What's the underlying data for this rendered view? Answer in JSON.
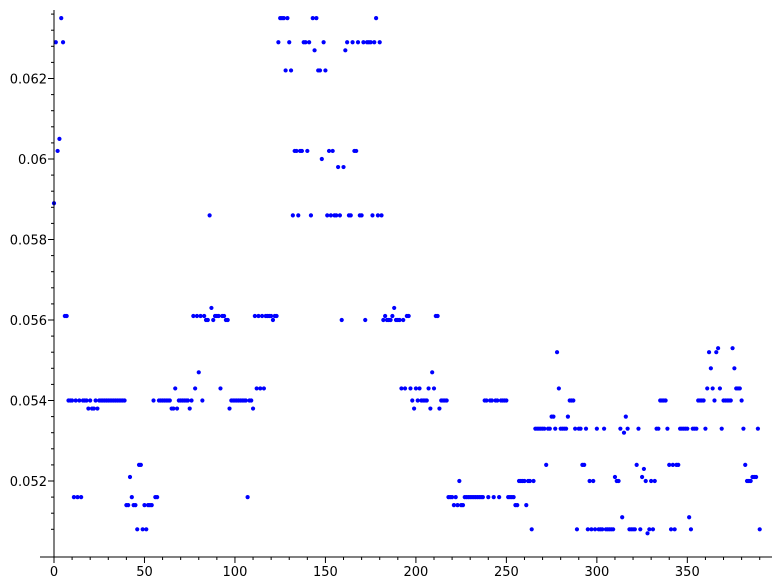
{
  "chart_data": {
    "type": "scatter",
    "title": "",
    "xlabel": "",
    "ylabel": "",
    "xlim": [
      0,
      396
    ],
    "ylim": [
      0.05035,
      0.06365
    ],
    "x_ticks": [
      0,
      50,
      100,
      150,
      200,
      250,
      300,
      350
    ],
    "y_ticks": [
      0.052,
      0.054,
      0.056,
      0.058,
      0.06,
      0.062
    ],
    "x_tick_labels": [
      "0",
      "50",
      "100",
      "150",
      "200",
      "250",
      "300",
      "350"
    ],
    "y_tick_labels": [
      "0.052",
      "0.054",
      "0.056",
      "0.058",
      "0.06",
      "0.062"
    ],
    "grid": false,
    "marker_color": "#0000ff",
    "points": [
      [
        0,
        0.0589
      ],
      [
        1,
        0.0629
      ],
      [
        2,
        0.0602
      ],
      [
        3,
        0.0605
      ],
      [
        4,
        0.0635
      ],
      [
        5,
        0.0629
      ],
      [
        6,
        0.0561
      ],
      [
        7,
        0.0561
      ],
      [
        8,
        0.054
      ],
      [
        9,
        0.054
      ],
      [
        10,
        0.054
      ],
      [
        11,
        0.0516
      ],
      [
        12,
        0.054
      ],
      [
        13,
        0.0516
      ],
      [
        14,
        0.054
      ],
      [
        15,
        0.0516
      ],
      [
        16,
        0.054
      ],
      [
        17,
        0.054
      ],
      [
        18,
        0.054
      ],
      [
        19,
        0.0538
      ],
      [
        20,
        0.054
      ],
      [
        21,
        0.0538
      ],
      [
        22,
        0.0538
      ],
      [
        23,
        0.054
      ],
      [
        24,
        0.0538
      ],
      [
        25,
        0.054
      ],
      [
        26,
        0.054
      ],
      [
        27,
        0.054
      ],
      [
        28,
        0.054
      ],
      [
        29,
        0.054
      ],
      [
        30,
        0.054
      ],
      [
        31,
        0.054
      ],
      [
        32,
        0.054
      ],
      [
        33,
        0.054
      ],
      [
        34,
        0.054
      ],
      [
        35,
        0.054
      ],
      [
        36,
        0.054
      ],
      [
        37,
        0.054
      ],
      [
        38,
        0.054
      ],
      [
        39,
        0.054
      ],
      [
        40,
        0.0514
      ],
      [
        41,
        0.0514
      ],
      [
        42,
        0.0521
      ],
      [
        43,
        0.0516
      ],
      [
        44,
        0.0514
      ],
      [
        45,
        0.0514
      ],
      [
        46,
        0.0508
      ],
      [
        47,
        0.0524
      ],
      [
        48,
        0.0524
      ],
      [
        49,
        0.0508
      ],
      [
        50,
        0.0514
      ],
      [
        51,
        0.0508
      ],
      [
        52,
        0.0514
      ],
      [
        53,
        0.0514
      ],
      [
        54,
        0.0514
      ],
      [
        55,
        0.054
      ],
      [
        56,
        0.0516
      ],
      [
        57,
        0.0516
      ],
      [
        58,
        0.054
      ],
      [
        59,
        0.054
      ],
      [
        60,
        0.054
      ],
      [
        61,
        0.054
      ],
      [
        62,
        0.054
      ],
      [
        63,
        0.054
      ],
      [
        64,
        0.054
      ],
      [
        65,
        0.0538
      ],
      [
        66,
        0.0538
      ],
      [
        67,
        0.0543
      ],
      [
        68,
        0.0538
      ],
      [
        69,
        0.054
      ],
      [
        70,
        0.054
      ],
      [
        71,
        0.054
      ],
      [
        72,
        0.054
      ],
      [
        73,
        0.054
      ],
      [
        74,
        0.054
      ],
      [
        75,
        0.0538
      ],
      [
        76,
        0.054
      ],
      [
        77,
        0.0561
      ],
      [
        78,
        0.0543
      ],
      [
        79,
        0.0561
      ],
      [
        80,
        0.0547
      ],
      [
        81,
        0.0561
      ],
      [
        82,
        0.054
      ],
      [
        83,
        0.0561
      ],
      [
        84,
        0.056
      ],
      [
        85,
        0.056
      ],
      [
        86,
        0.0586
      ],
      [
        87,
        0.0563
      ],
      [
        88,
        0.056
      ],
      [
        89,
        0.0561
      ],
      [
        90,
        0.0561
      ],
      [
        91,
        0.0561
      ],
      [
        92,
        0.0543
      ],
      [
        93,
        0.0561
      ],
      [
        94,
        0.0561
      ],
      [
        95,
        0.056
      ],
      [
        96,
        0.056
      ],
      [
        97,
        0.0538
      ],
      [
        98,
        0.054
      ],
      [
        99,
        0.054
      ],
      [
        100,
        0.054
      ],
      [
        101,
        0.054
      ],
      [
        102,
        0.054
      ],
      [
        103,
        0.054
      ],
      [
        104,
        0.054
      ],
      [
        105,
        0.054
      ],
      [
        106,
        0.054
      ],
      [
        107,
        0.0516
      ],
      [
        108,
        0.054
      ],
      [
        109,
        0.054
      ],
      [
        110,
        0.0538
      ],
      [
        111,
        0.0561
      ],
      [
        112,
        0.0543
      ],
      [
        113,
        0.0561
      ],
      [
        114,
        0.0543
      ],
      [
        115,
        0.0561
      ],
      [
        116,
        0.0543
      ],
      [
        117,
        0.0561
      ],
      [
        118,
        0.0561
      ],
      [
        119,
        0.0561
      ],
      [
        120,
        0.0561
      ],
      [
        121,
        0.056
      ],
      [
        122,
        0.0561
      ],
      [
        123,
        0.0561
      ],
      [
        124,
        0.0629
      ],
      [
        125,
        0.0635
      ],
      [
        126,
        0.0635
      ],
      [
        127,
        0.0635
      ],
      [
        128,
        0.0622
      ],
      [
        129,
        0.0635
      ],
      [
        130,
        0.0629
      ],
      [
        131,
        0.0622
      ],
      [
        132,
        0.0586
      ],
      [
        133,
        0.0602
      ],
      [
        134,
        0.0602
      ],
      [
        135,
        0.0586
      ],
      [
        136,
        0.0602
      ],
      [
        137,
        0.0602
      ],
      [
        138,
        0.0629
      ],
      [
        139,
        0.0629
      ],
      [
        140,
        0.0602
      ],
      [
        141,
        0.0629
      ],
      [
        142,
        0.0586
      ],
      [
        143,
        0.0635
      ],
      [
        144,
        0.0627
      ],
      [
        145,
        0.0635
      ],
      [
        146,
        0.0622
      ],
      [
        147,
        0.0622
      ],
      [
        148,
        0.06
      ],
      [
        149,
        0.0629
      ],
      [
        150,
        0.0622
      ],
      [
        151,
        0.0586
      ],
      [
        152,
        0.0602
      ],
      [
        153,
        0.0586
      ],
      [
        154,
        0.0602
      ],
      [
        155,
        0.0586
      ],
      [
        156,
        0.0586
      ],
      [
        157,
        0.0598
      ],
      [
        158,
        0.0586
      ],
      [
        159,
        0.056
      ],
      [
        160,
        0.0598
      ],
      [
        161,
        0.0627
      ],
      [
        162,
        0.0629
      ],
      [
        163,
        0.0586
      ],
      [
        164,
        0.0586
      ],
      [
        165,
        0.0629
      ],
      [
        166,
        0.0602
      ],
      [
        167,
        0.0602
      ],
      [
        168,
        0.0629
      ],
      [
        169,
        0.0586
      ],
      [
        170,
        0.0586
      ],
      [
        171,
        0.0629
      ],
      [
        172,
        0.056
      ],
      [
        173,
        0.0629
      ],
      [
        174,
        0.0629
      ],
      [
        175,
        0.0629
      ],
      [
        176,
        0.0586
      ],
      [
        177,
        0.0629
      ],
      [
        178,
        0.0635
      ],
      [
        179,
        0.0586
      ],
      [
        180,
        0.0629
      ],
      [
        181,
        0.0586
      ],
      [
        182,
        0.056
      ],
      [
        183,
        0.0561
      ],
      [
        184,
        0.056
      ],
      [
        185,
        0.056
      ],
      [
        186,
        0.056
      ],
      [
        187,
        0.0561
      ],
      [
        188,
        0.0563
      ],
      [
        189,
        0.056
      ],
      [
        190,
        0.056
      ],
      [
        191,
        0.056
      ],
      [
        192,
        0.0543
      ],
      [
        193,
        0.056
      ],
      [
        194,
        0.0543
      ],
      [
        195,
        0.0561
      ],
      [
        196,
        0.0561
      ],
      [
        197,
        0.0543
      ],
      [
        198,
        0.054
      ],
      [
        199,
        0.0538
      ],
      [
        200,
        0.0543
      ],
      [
        201,
        0.054
      ],
      [
        202,
        0.0543
      ],
      [
        203,
        0.054
      ],
      [
        204,
        0.054
      ],
      [
        205,
        0.054
      ],
      [
        206,
        0.054
      ],
      [
        207,
        0.0543
      ],
      [
        208,
        0.0538
      ],
      [
        209,
        0.0547
      ],
      [
        210,
        0.0543
      ],
      [
        211,
        0.0561
      ],
      [
        212,
        0.0561
      ],
      [
        213,
        0.0538
      ],
      [
        214,
        0.054
      ],
      [
        215,
        0.054
      ],
      [
        216,
        0.054
      ],
      [
        217,
        0.054
      ],
      [
        218,
        0.0516
      ],
      [
        219,
        0.0516
      ],
      [
        220,
        0.0516
      ],
      [
        221,
        0.0514
      ],
      [
        222,
        0.0516
      ],
      [
        223,
        0.0514
      ],
      [
        224,
        0.052
      ],
      [
        225,
        0.0514
      ],
      [
        226,
        0.0514
      ],
      [
        227,
        0.0516
      ],
      [
        228,
        0.0516
      ],
      [
        229,
        0.0516
      ],
      [
        230,
        0.0516
      ],
      [
        231,
        0.0516
      ],
      [
        232,
        0.0516
      ],
      [
        233,
        0.0516
      ],
      [
        234,
        0.0516
      ],
      [
        235,
        0.0516
      ],
      [
        236,
        0.0516
      ],
      [
        237,
        0.0516
      ],
      [
        238,
        0.054
      ],
      [
        239,
        0.054
      ],
      [
        240,
        0.0516
      ],
      [
        241,
        0.054
      ],
      [
        242,
        0.054
      ],
      [
        243,
        0.0516
      ],
      [
        244,
        0.054
      ],
      [
        245,
        0.054
      ],
      [
        246,
        0.0516
      ],
      [
        247,
        0.054
      ],
      [
        248,
        0.054
      ],
      [
        249,
        0.054
      ],
      [
        250,
        0.054
      ],
      [
        251,
        0.0516
      ],
      [
        252,
        0.0516
      ],
      [
        253,
        0.0516
      ],
      [
        254,
        0.0516
      ],
      [
        255,
        0.0514
      ],
      [
        256,
        0.0514
      ],
      [
        257,
        0.052
      ],
      [
        258,
        0.052
      ],
      [
        259,
        0.052
      ],
      [
        260,
        0.052
      ],
      [
        261,
        0.0514
      ],
      [
        262,
        0.052
      ],
      [
        263,
        0.052
      ],
      [
        264,
        0.0508
      ],
      [
        265,
        0.052
      ],
      [
        266,
        0.0533
      ],
      [
        267,
        0.0533
      ],
      [
        268,
        0.0533
      ],
      [
        269,
        0.0533
      ],
      [
        270,
        0.0533
      ],
      [
        271,
        0.0533
      ],
      [
        272,
        0.0524
      ],
      [
        273,
        0.0533
      ],
      [
        274,
        0.0533
      ],
      [
        275,
        0.0536
      ],
      [
        276,
        0.0536
      ],
      [
        277,
        0.0533
      ],
      [
        278,
        0.0552
      ],
      [
        279,
        0.0543
      ],
      [
        280,
        0.0533
      ],
      [
        281,
        0.0533
      ],
      [
        282,
        0.0533
      ],
      [
        283,
        0.0533
      ],
      [
        284,
        0.0536
      ],
      [
        285,
        0.054
      ],
      [
        286,
        0.054
      ],
      [
        287,
        0.054
      ],
      [
        288,
        0.0533
      ],
      [
        289,
        0.0508
      ],
      [
        290,
        0.0533
      ],
      [
        291,
        0.0533
      ],
      [
        292,
        0.0524
      ],
      [
        293,
        0.0524
      ],
      [
        294,
        0.0533
      ],
      [
        295,
        0.0508
      ],
      [
        296,
        0.052
      ],
      [
        297,
        0.0508
      ],
      [
        298,
        0.052
      ],
      [
        299,
        0.0508
      ],
      [
        300,
        0.0533
      ],
      [
        301,
        0.0508
      ],
      [
        302,
        0.0508
      ],
      [
        303,
        0.0508
      ],
      [
        304,
        0.0533
      ],
      [
        305,
        0.0508
      ],
      [
        306,
        0.0508
      ],
      [
        307,
        0.0508
      ],
      [
        308,
        0.0508
      ],
      [
        309,
        0.0508
      ],
      [
        310,
        0.0521
      ],
      [
        311,
        0.052
      ],
      [
        312,
        0.052
      ],
      [
        313,
        0.0533
      ],
      [
        314,
        0.0511
      ],
      [
        315,
        0.0532
      ],
      [
        316,
        0.0536
      ],
      [
        317,
        0.0533
      ],
      [
        318,
        0.0508
      ],
      [
        319,
        0.0508
      ],
      [
        320,
        0.0508
      ],
      [
        321,
        0.0508
      ],
      [
        322,
        0.0524
      ],
      [
        323,
        0.0533
      ],
      [
        324,
        0.0508
      ],
      [
        325,
        0.0521
      ],
      [
        326,
        0.0523
      ],
      [
        327,
        0.052
      ],
      [
        328,
        0.0507
      ],
      [
        329,
        0.0508
      ],
      [
        330,
        0.052
      ],
      [
        331,
        0.0508
      ],
      [
        332,
        0.052
      ],
      [
        333,
        0.0533
      ],
      [
        334,
        0.0533
      ],
      [
        335,
        0.054
      ],
      [
        336,
        0.054
      ],
      [
        337,
        0.054
      ],
      [
        338,
        0.054
      ],
      [
        339,
        0.0533
      ],
      [
        340,
        0.0524
      ],
      [
        341,
        0.0508
      ],
      [
        342,
        0.0524
      ],
      [
        343,
        0.0508
      ],
      [
        344,
        0.0524
      ],
      [
        345,
        0.0524
      ],
      [
        346,
        0.0533
      ],
      [
        347,
        0.0533
      ],
      [
        348,
        0.0533
      ],
      [
        349,
        0.0533
      ],
      [
        350,
        0.0533
      ],
      [
        351,
        0.0511
      ],
      [
        352,
        0.0508
      ],
      [
        353,
        0.0533
      ],
      [
        354,
        0.0533
      ],
      [
        355,
        0.0533
      ],
      [
        356,
        0.054
      ],
      [
        357,
        0.054
      ],
      [
        358,
        0.054
      ],
      [
        359,
        0.054
      ],
      [
        360,
        0.0533
      ],
      [
        361,
        0.0543
      ],
      [
        362,
        0.0552
      ],
      [
        363,
        0.0548
      ],
      [
        364,
        0.0543
      ],
      [
        365,
        0.054
      ],
      [
        366,
        0.0552
      ],
      [
        367,
        0.0553
      ],
      [
        368,
        0.0543
      ],
      [
        369,
        0.0533
      ],
      [
        370,
        0.054
      ],
      [
        371,
        0.054
      ],
      [
        372,
        0.054
      ],
      [
        373,
        0.054
      ],
      [
        374,
        0.054
      ],
      [
        375,
        0.0553
      ],
      [
        376,
        0.0548
      ],
      [
        377,
        0.0543
      ],
      [
        378,
        0.0543
      ],
      [
        379,
        0.0543
      ],
      [
        380,
        0.054
      ],
      [
        381,
        0.0533
      ],
      [
        382,
        0.0524
      ],
      [
        383,
        0.052
      ],
      [
        384,
        0.052
      ],
      [
        385,
        0.052
      ],
      [
        386,
        0.0521
      ],
      [
        387,
        0.0521
      ],
      [
        388,
        0.0521
      ],
      [
        389,
        0.0533
      ],
      [
        390,
        0.0508
      ]
    ]
  }
}
